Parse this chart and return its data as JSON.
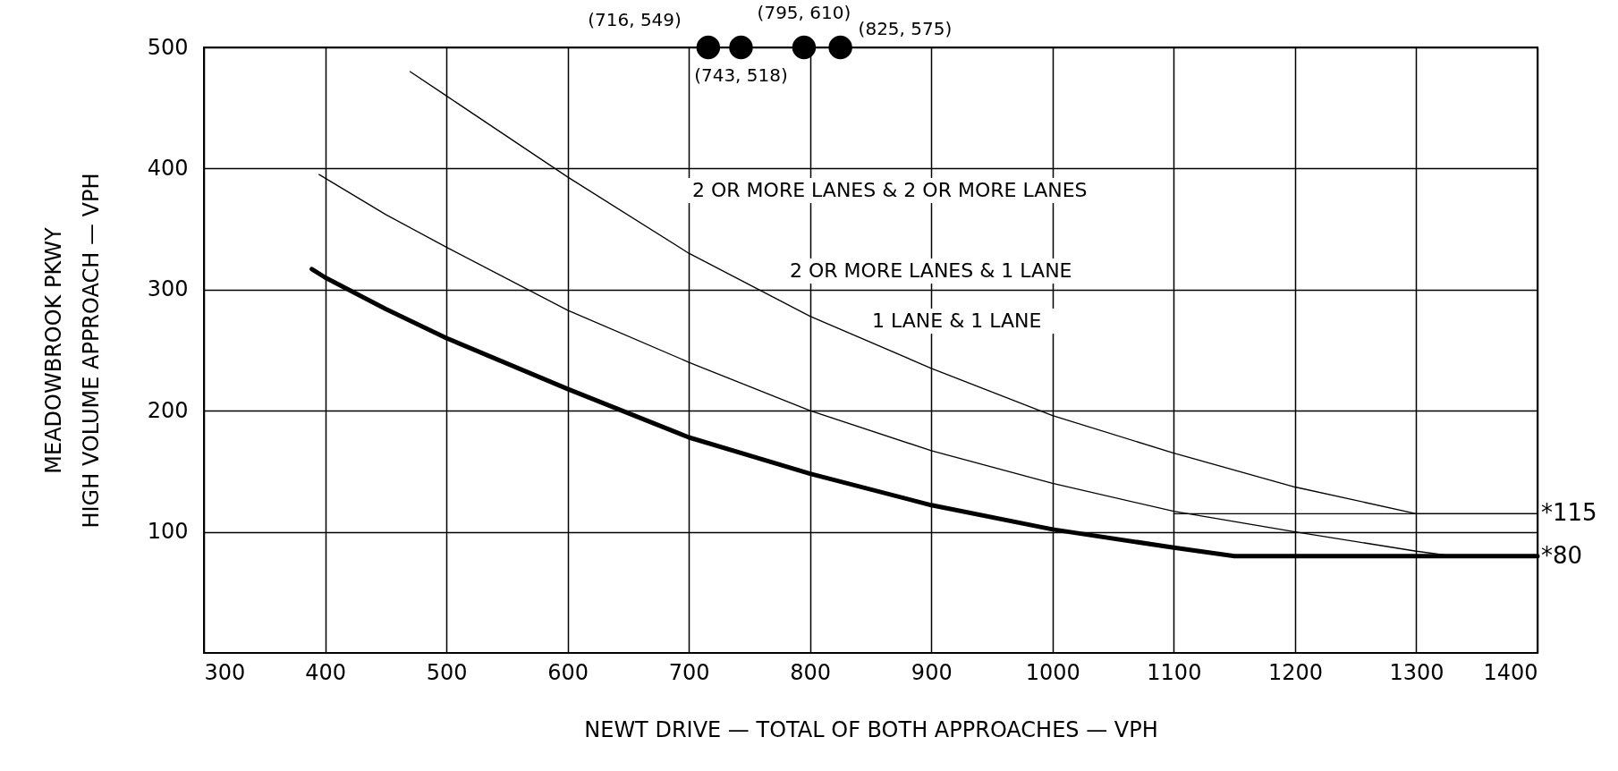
{
  "chart_data": {
    "type": "line",
    "xlabel": "NEWT DRIVE — TOTAL OF BOTH APPROACHES — VPH",
    "ylabel": "MEADOWBROOK PKWY\nHIGH VOLUME APPROACH — VPH",
    "xlim": [
      300,
      1400
    ],
    "xticks": [
      300,
      400,
      500,
      600,
      700,
      800,
      900,
      1000,
      1100,
      1200,
      1300,
      1400
    ],
    "ylim": [
      0,
      500
    ],
    "yticks": [
      100,
      200,
      300,
      400,
      500
    ],
    "grid": true,
    "marker": "none",
    "line_style": "solid",
    "series": [
      {
        "color": "#000000",
        "x": [
          389,
          400,
          450,
          500,
          600,
          700,
          800,
          900,
          1000,
          1100,
          1150,
          1400
        ],
        "values": [
          317,
          310,
          284,
          260,
          218,
          178,
          148,
          122,
          102,
          87,
          80,
          80
        ]
      },
      {
        "color": "#000000",
        "x": [
          395,
          450,
          500,
          600,
          700,
          800,
          900,
          1000,
          1100,
          1200,
          1300,
          1330,
          1400
        ],
        "values": [
          395,
          362,
          335,
          283,
          240,
          200,
          167,
          140,
          117,
          100,
          84,
          80,
          80
        ]
      },
      {
        "color": "#000000",
        "x": [
          470,
          500,
          600,
          700,
          800,
          900,
          1000,
          1100,
          1200,
          1300,
          1400
        ],
        "values": [
          480,
          460,
          393,
          330,
          278,
          235,
          196,
          165,
          137,
          115,
          115
        ]
      },
      {
        "color": "#000000",
        "x": [
          1100,
          1400
        ],
        "values": [
          115,
          115
        ]
      },
      {
        "type": "scatter",
        "marker": "circle",
        "color": "#000000",
        "x": [
          716,
          743,
          795,
          825
        ],
        "values": [
          500,
          500,
          500,
          500
        ],
        "value_labels": [
          "(716, 549)",
          "(743, 518)",
          "(795, 610)",
          "(825, 575)"
        ]
      }
    ],
    "annotations": [
      "2 OR MORE LANES & 2 OR MORE LANES",
      "2 OR MORE LANES & 1 LANE",
      "1 LANE & 1 LANE",
      {
        "text": "*115",
        "x": 1400,
        "y": 115
      },
      {
        "text": "*80",
        "x": 1400,
        "y": 80
      }
    ]
  }
}
